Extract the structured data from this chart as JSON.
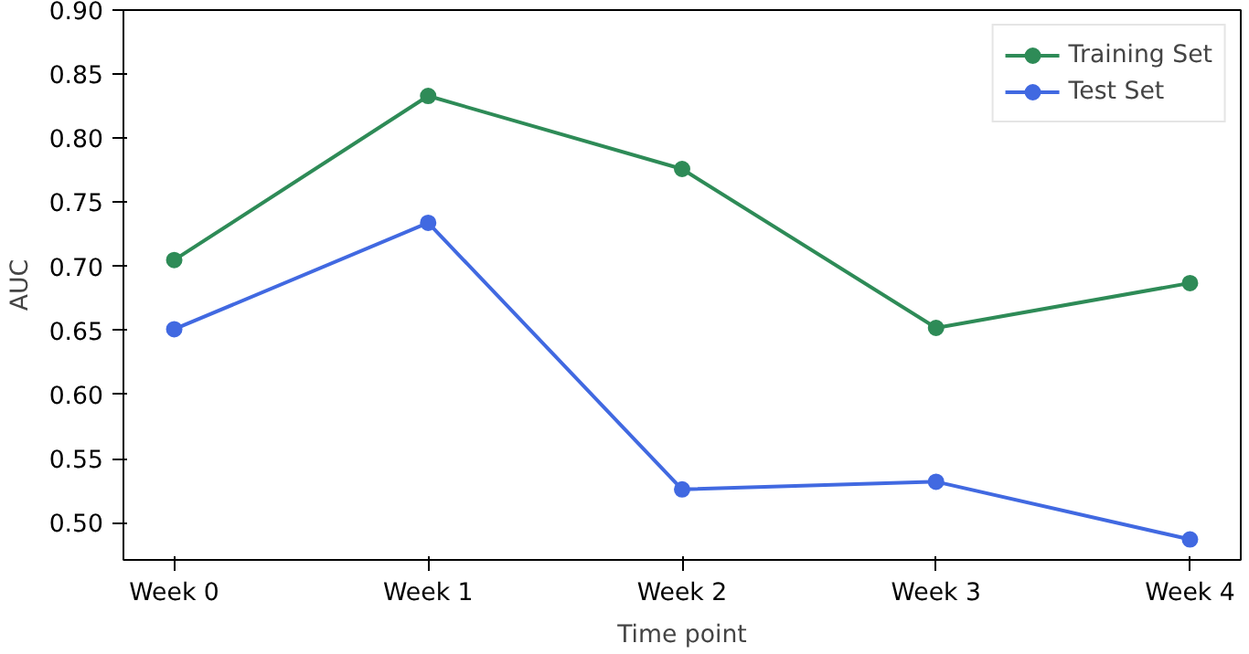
{
  "chart_data": {
    "type": "line",
    "xlabel": "Time point",
    "ylabel": "AUC",
    "categories": [
      "Week 0",
      "Week 1",
      "Week 2",
      "Week 3",
      "Week 4"
    ],
    "series": [
      {
        "name": "Training Set",
        "color": "#2e8b57",
        "values": [
          0.705,
          0.833,
          0.776,
          0.652,
          0.687
        ]
      },
      {
        "name": "Test Set",
        "color": "#4169e1",
        "values": [
          0.651,
          0.734,
          0.526,
          0.532,
          0.487
        ]
      }
    ],
    "ylim": [
      0.471,
      0.9
    ],
    "yticks": [
      {
        "value": 0.5,
        "label": "0.50"
      },
      {
        "value": 0.55,
        "label": "0.55"
      },
      {
        "value": 0.6,
        "label": "0.60"
      },
      {
        "value": 0.65,
        "label": "0.65"
      },
      {
        "value": 0.7,
        "label": "0.70"
      },
      {
        "value": 0.75,
        "label": "0.75"
      },
      {
        "value": 0.8,
        "label": "0.80"
      },
      {
        "value": 0.85,
        "label": "0.85"
      },
      {
        "value": 0.9,
        "label": "0.90"
      }
    ],
    "grid": false,
    "legend": "top right",
    "marker": "circle",
    "line_style": "solid"
  }
}
